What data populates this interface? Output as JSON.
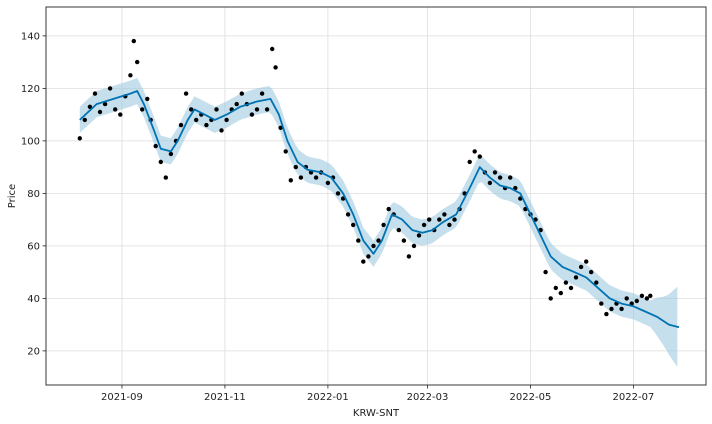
{
  "chart_data": {
    "type": "scatter",
    "title": "",
    "xlabel": "KRW-SNT",
    "ylabel": "Price",
    "grid": true,
    "colors": {
      "observations": "#000000",
      "forecast_line": "#0072B2",
      "uncertainty_band": "#9ecae1"
    },
    "x_ticks": [
      "2021-09",
      "2021-11",
      "2022-01",
      "2022-03",
      "2022-05",
      "2022-07"
    ],
    "xlim": [
      "2021-07-18",
      "2022-08-13"
    ],
    "y_ticks": [
      20,
      40,
      60,
      80,
      100,
      120,
      140
    ],
    "ylim": [
      7,
      151
    ],
    "observed_range": [
      "2021-08-07",
      "2022-07-11"
    ],
    "series": [
      {
        "kind": "observed",
        "points": [
          [
            "2021-08-07",
            101
          ],
          [
            "2021-08-10",
            108
          ],
          [
            "2021-08-13",
            113
          ],
          [
            "2021-08-16",
            118
          ],
          [
            "2021-08-19",
            111
          ],
          [
            "2021-08-22",
            114
          ],
          [
            "2021-08-25",
            120
          ],
          [
            "2021-08-28",
            112
          ],
          [
            "2021-08-31",
            110
          ],
          [
            "2021-09-03",
            117
          ],
          [
            "2021-09-06",
            125
          ],
          [
            "2021-09-08",
            138
          ],
          [
            "2021-09-10",
            130
          ],
          [
            "2021-09-13",
            112
          ],
          [
            "2021-09-16",
            116
          ],
          [
            "2021-09-18",
            108
          ],
          [
            "2021-09-21",
            98
          ],
          [
            "2021-09-24",
            92
          ],
          [
            "2021-09-27",
            86
          ],
          [
            "2021-09-30",
            95
          ],
          [
            "2021-10-03",
            100
          ],
          [
            "2021-10-06",
            106
          ],
          [
            "2021-10-09",
            118
          ],
          [
            "2021-10-12",
            112
          ],
          [
            "2021-10-15",
            108
          ],
          [
            "2021-10-18",
            110
          ],
          [
            "2021-10-21",
            106
          ],
          [
            "2021-10-24",
            108
          ],
          [
            "2021-10-27",
            112
          ],
          [
            "2021-10-30",
            104
          ],
          [
            "2021-11-02",
            108
          ],
          [
            "2021-11-05",
            112
          ],
          [
            "2021-11-08",
            114
          ],
          [
            "2021-11-11",
            118
          ],
          [
            "2021-11-14",
            114
          ],
          [
            "2021-11-17",
            110
          ],
          [
            "2021-11-20",
            112
          ],
          [
            "2021-11-23",
            118
          ],
          [
            "2021-11-26",
            112
          ],
          [
            "2021-11-29",
            135
          ],
          [
            "2021-12-01",
            128
          ],
          [
            "2021-12-04",
            105
          ],
          [
            "2021-12-07",
            96
          ],
          [
            "2021-12-10",
            85
          ],
          [
            "2021-12-13",
            90
          ],
          [
            "2021-12-16",
            86
          ],
          [
            "2021-12-19",
            90
          ],
          [
            "2021-12-22",
            88
          ],
          [
            "2021-12-25",
            86
          ],
          [
            "2021-12-28",
            88
          ],
          [
            "2022-01-01",
            84
          ],
          [
            "2022-01-04",
            86
          ],
          [
            "2022-01-07",
            80
          ],
          [
            "2022-01-10",
            78
          ],
          [
            "2022-01-13",
            72
          ],
          [
            "2022-01-16",
            68
          ],
          [
            "2022-01-19",
            62
          ],
          [
            "2022-01-22",
            54
          ],
          [
            "2022-01-25",
            56
          ],
          [
            "2022-01-28",
            60
          ],
          [
            "2022-01-31",
            62
          ],
          [
            "2022-02-03",
            68
          ],
          [
            "2022-02-06",
            74
          ],
          [
            "2022-02-09",
            72
          ],
          [
            "2022-02-12",
            66
          ],
          [
            "2022-02-15",
            62
          ],
          [
            "2022-02-18",
            56
          ],
          [
            "2022-02-21",
            60
          ],
          [
            "2022-02-24",
            64
          ],
          [
            "2022-02-27",
            68
          ],
          [
            "2022-03-02",
            70
          ],
          [
            "2022-03-05",
            66
          ],
          [
            "2022-03-08",
            70
          ],
          [
            "2022-03-11",
            72
          ],
          [
            "2022-03-14",
            68
          ],
          [
            "2022-03-17",
            70
          ],
          [
            "2022-03-20",
            74
          ],
          [
            "2022-03-23",
            80
          ],
          [
            "2022-03-26",
            92
          ],
          [
            "2022-03-29",
            96
          ],
          [
            "2022-04-01",
            94
          ],
          [
            "2022-04-04",
            88
          ],
          [
            "2022-04-07",
            84
          ],
          [
            "2022-04-10",
            88
          ],
          [
            "2022-04-13",
            86
          ],
          [
            "2022-04-16",
            82
          ],
          [
            "2022-04-19",
            86
          ],
          [
            "2022-04-22",
            82
          ],
          [
            "2022-04-25",
            78
          ],
          [
            "2022-04-28",
            74
          ],
          [
            "2022-05-01",
            72
          ],
          [
            "2022-05-04",
            70
          ],
          [
            "2022-05-07",
            66
          ],
          [
            "2022-05-10",
            50
          ],
          [
            "2022-05-13",
            40
          ],
          [
            "2022-05-16",
            44
          ],
          [
            "2022-05-19",
            42
          ],
          [
            "2022-05-22",
            46
          ],
          [
            "2022-05-25",
            44
          ],
          [
            "2022-05-28",
            48
          ],
          [
            "2022-05-31",
            52
          ],
          [
            "2022-06-03",
            54
          ],
          [
            "2022-06-06",
            50
          ],
          [
            "2022-06-09",
            46
          ],
          [
            "2022-06-12",
            38
          ],
          [
            "2022-06-15",
            34
          ],
          [
            "2022-06-18",
            36
          ],
          [
            "2022-06-21",
            38
          ],
          [
            "2022-06-24",
            36
          ],
          [
            "2022-06-27",
            40
          ],
          [
            "2022-06-30",
            38
          ],
          [
            "2022-07-03",
            39
          ],
          [
            "2022-07-06",
            41
          ],
          [
            "2022-07-09",
            40
          ],
          [
            "2022-07-11",
            41
          ]
        ]
      },
      {
        "kind": "forecast",
        "points": [
          [
            "2021-08-07",
            108
          ],
          [
            "2021-08-17",
            114
          ],
          [
            "2021-08-27",
            116
          ],
          [
            "2021-09-06",
            118
          ],
          [
            "2021-09-10",
            119
          ],
          [
            "2021-09-14",
            114
          ],
          [
            "2021-09-20",
            104
          ],
          [
            "2021-09-24",
            97
          ],
          [
            "2021-09-30",
            96
          ],
          [
            "2021-10-04",
            100
          ],
          [
            "2021-10-10",
            108
          ],
          [
            "2021-10-14",
            112
          ],
          [
            "2021-10-20",
            110
          ],
          [
            "2021-10-26",
            108
          ],
          [
            "2021-11-02",
            110
          ],
          [
            "2021-11-10",
            113
          ],
          [
            "2021-11-20",
            115
          ],
          [
            "2021-11-28",
            116
          ],
          [
            "2021-12-03",
            110
          ],
          [
            "2021-12-08",
            100
          ],
          [
            "2021-12-14",
            92
          ],
          [
            "2021-12-20",
            89
          ],
          [
            "2021-12-28",
            88
          ],
          [
            "2022-01-03",
            86
          ],
          [
            "2022-01-10",
            80
          ],
          [
            "2022-01-16",
            72
          ],
          [
            "2022-01-22",
            62
          ],
          [
            "2022-01-28",
            57
          ],
          [
            "2022-02-02",
            62
          ],
          [
            "2022-02-08",
            72
          ],
          [
            "2022-02-14",
            70
          ],
          [
            "2022-02-20",
            66
          ],
          [
            "2022-02-26",
            65
          ],
          [
            "2022-03-04",
            66
          ],
          [
            "2022-03-10",
            69
          ],
          [
            "2022-03-18",
            72
          ],
          [
            "2022-03-26",
            82
          ],
          [
            "2022-04-01",
            90
          ],
          [
            "2022-04-07",
            86
          ],
          [
            "2022-04-13",
            83
          ],
          [
            "2022-04-19",
            82
          ],
          [
            "2022-04-25",
            80
          ],
          [
            "2022-05-01",
            72
          ],
          [
            "2022-05-07",
            64
          ],
          [
            "2022-05-13",
            56
          ],
          [
            "2022-05-20",
            52
          ],
          [
            "2022-05-27",
            50
          ],
          [
            "2022-06-03",
            48
          ],
          [
            "2022-06-10",
            44
          ],
          [
            "2022-06-17",
            40
          ],
          [
            "2022-06-24",
            38
          ],
          [
            "2022-07-01",
            37
          ],
          [
            "2022-07-08",
            35
          ],
          [
            "2022-07-15",
            33
          ],
          [
            "2022-07-22",
            30
          ],
          [
            "2022-07-28",
            29
          ]
        ]
      }
    ],
    "band_width": [
      [
        "2021-08-07",
        5
      ],
      [
        "2022-07-11",
        5
      ],
      [
        "2022-07-20",
        10
      ],
      [
        "2022-07-28",
        16
      ]
    ]
  }
}
